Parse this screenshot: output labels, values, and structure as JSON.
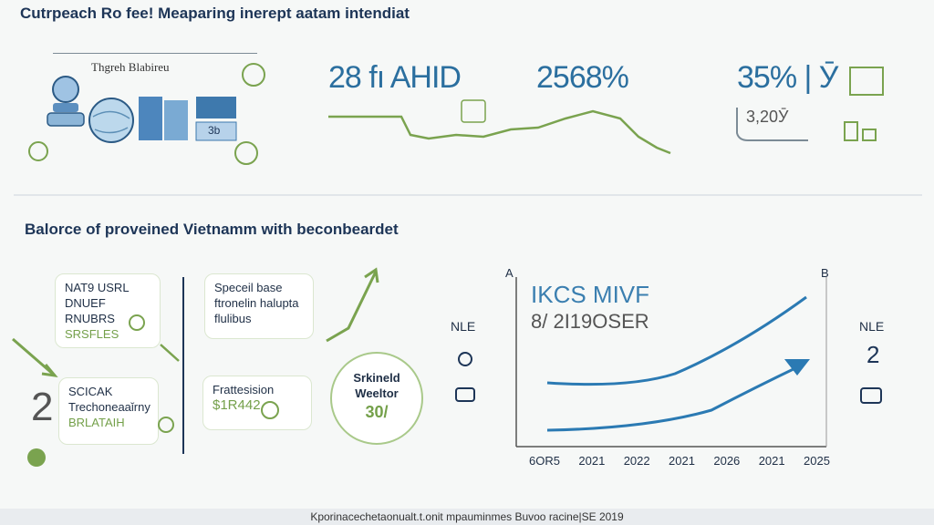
{
  "header": {
    "title": "Cutrpeach Ro fee! Meaparing inerept aatam intendiat"
  },
  "top_panel": {
    "label": "Thgreh Blabireu",
    "block_label": "3b",
    "stat1": "28 fı AHID",
    "stat2": "2568%",
    "stat3": "35% | Ӯ",
    "stat3_sub": "3,20Ӯ"
  },
  "section": {
    "title": "Balorce of proveined Vietnamm with beconbeardet"
  },
  "cards": {
    "card1": {
      "line1": "NAT9 USRL",
      "line2": "DNUEF RNUBRS",
      "line3": "SRSFLES"
    },
    "card2": {
      "line1": "Speceil base",
      "line2": "ftronelin halupta",
      "line3": "flulibus"
    },
    "card3": {
      "line1": "SCICAK",
      "line2": "Trechoneaaǐrny",
      "line3": "BRLATAIH"
    },
    "card4": {
      "line1": "Frattesision",
      "line2": "$1R442"
    },
    "circle": {
      "line1": "Srkineld",
      "line2": "Weeltor",
      "line3": "30/"
    },
    "big_digit": "2"
  },
  "chart": {
    "corner_left": "A",
    "corner_right": "B",
    "title": "IKCS MIVF",
    "subtitle": "8/ 2I19OSER",
    "left_label": "NLE",
    "right_label": "NLE",
    "right_value": "2",
    "x_ticks": [
      "6OR5",
      "2021",
      "2022",
      "2021",
      "2026",
      "2021",
      "2025"
    ]
  },
  "footer": {
    "text": "Kporinacechetaonualt.t.onit mpauminmes Buvoo racine|SE 2019"
  },
  "colors": {
    "navy": "#1d3557",
    "blue": "#2b6f9f",
    "green": "#74a04a",
    "light_green": "#a9c98a"
  }
}
